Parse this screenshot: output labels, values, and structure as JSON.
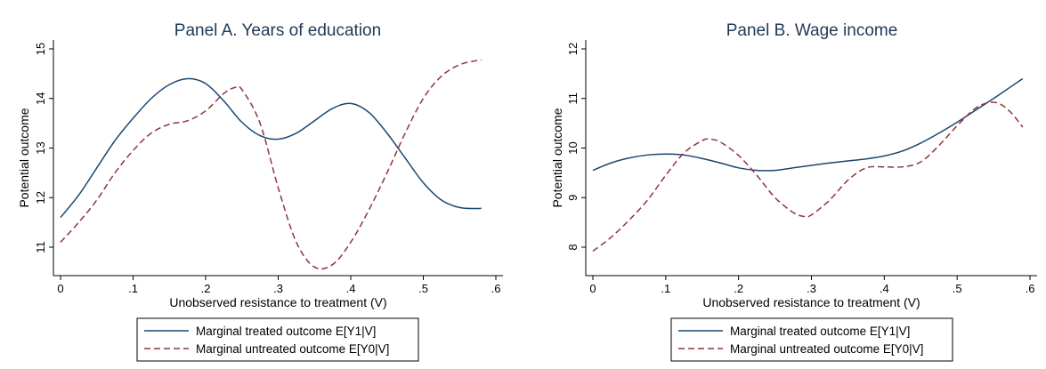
{
  "chart_data": [
    {
      "type": "line",
      "title": "Panel A. Years of education",
      "xlabel": "Unobserved resistance to treatment (V)",
      "ylabel": "Potential outcome",
      "xlim": [
        0,
        0.6
      ],
      "ylim": [
        11,
        15
      ],
      "xticks": [
        0,
        0.1,
        0.2,
        0.3,
        0.4,
        0.5,
        0.6
      ],
      "xtick_labels": [
        "0",
        ".1",
        ".2",
        ".3",
        ".4",
        ".5",
        ".6"
      ],
      "yticks": [
        11,
        12,
        13,
        14,
        15
      ],
      "ytick_labels": [
        "11",
        "12",
        "13",
        "14",
        "15"
      ],
      "grid": false,
      "legend": "bottom",
      "series": [
        {
          "name": "Marginal treated outcome E[Y1|V]",
          "color": "#1a476f",
          "dash": "solid",
          "x": [
            0,
            0.025,
            0.05,
            0.075,
            0.1,
            0.125,
            0.15,
            0.175,
            0.2,
            0.225,
            0.25,
            0.275,
            0.3,
            0.325,
            0.35,
            0.375,
            0.4,
            0.425,
            0.45,
            0.475,
            0.5,
            0.525,
            0.55,
            0.575,
            0.58
          ],
          "y": [
            11.6,
            12.05,
            12.6,
            13.15,
            13.6,
            14.0,
            14.28,
            14.4,
            14.3,
            13.95,
            13.52,
            13.25,
            13.18,
            13.3,
            13.55,
            13.8,
            13.9,
            13.72,
            13.3,
            12.8,
            12.3,
            11.95,
            11.8,
            11.78,
            11.79
          ]
        },
        {
          "name": "Marginal untreated outcome E[Y0|V]",
          "color": "#90353b",
          "dash": "dashed",
          "x": [
            0,
            0.025,
            0.05,
            0.075,
            0.1,
            0.125,
            0.15,
            0.175,
            0.2,
            0.225,
            0.24,
            0.25,
            0.275,
            0.3,
            0.325,
            0.35,
            0.375,
            0.4,
            0.425,
            0.45,
            0.475,
            0.5,
            0.525,
            0.55,
            0.575,
            0.58
          ],
          "y": [
            11.1,
            11.5,
            11.95,
            12.5,
            12.95,
            13.3,
            13.48,
            13.55,
            13.75,
            14.1,
            14.22,
            14.18,
            13.5,
            12.2,
            11.1,
            10.6,
            10.65,
            11.1,
            11.75,
            12.5,
            13.3,
            14.0,
            14.45,
            14.68,
            14.77,
            14.78
          ]
        }
      ]
    },
    {
      "type": "line",
      "title": "Panel B. Wage income",
      "xlabel": "Unobserved resistance to treatment (V)",
      "ylabel": "Potential outcome",
      "xlim": [
        0,
        0.6
      ],
      "ylim": [
        8,
        12
      ],
      "xticks": [
        0,
        0.1,
        0.2,
        0.3,
        0.4,
        0.5,
        0.6
      ],
      "xtick_labels": [
        "0",
        ".1",
        ".2",
        ".3",
        ".4",
        ".5",
        ".6"
      ],
      "yticks": [
        8,
        9,
        10,
        11,
        12
      ],
      "ytick_labels": [
        "8",
        "9",
        "10",
        "11",
        "12"
      ],
      "grid": false,
      "legend": "bottom",
      "series": [
        {
          "name": "Marginal treated outcome E[Y1|V]",
          "color": "#1a476f",
          "dash": "solid",
          "x": [
            0,
            0.025,
            0.05,
            0.075,
            0.1,
            0.125,
            0.15,
            0.175,
            0.2,
            0.225,
            0.25,
            0.275,
            0.3,
            0.325,
            0.35,
            0.375,
            0.4,
            0.425,
            0.45,
            0.475,
            0.5,
            0.525,
            0.55,
            0.575,
            0.59
          ],
          "y": [
            9.55,
            9.7,
            9.8,
            9.86,
            9.88,
            9.86,
            9.79,
            9.7,
            9.6,
            9.55,
            9.55,
            9.6,
            9.65,
            9.7,
            9.74,
            9.78,
            9.84,
            9.94,
            10.1,
            10.3,
            10.52,
            10.76,
            11.0,
            11.25,
            11.4
          ]
        },
        {
          "name": "Marginal untreated outcome E[Y0|V]",
          "color": "#90353b",
          "dash": "dashed",
          "x": [
            0,
            0.025,
            0.05,
            0.075,
            0.1,
            0.125,
            0.15,
            0.16,
            0.175,
            0.2,
            0.225,
            0.25,
            0.275,
            0.29,
            0.3,
            0.325,
            0.35,
            0.375,
            0.4,
            0.425,
            0.45,
            0.475,
            0.5,
            0.525,
            0.545,
            0.56,
            0.575,
            0.59
          ],
          "y": [
            7.92,
            8.2,
            8.55,
            8.95,
            9.45,
            9.9,
            10.15,
            10.18,
            10.12,
            9.85,
            9.45,
            9.0,
            8.7,
            8.62,
            8.65,
            8.95,
            9.35,
            9.6,
            9.62,
            9.62,
            9.72,
            10.05,
            10.45,
            10.8,
            10.92,
            10.88,
            10.7,
            10.42
          ]
        }
      ]
    }
  ]
}
